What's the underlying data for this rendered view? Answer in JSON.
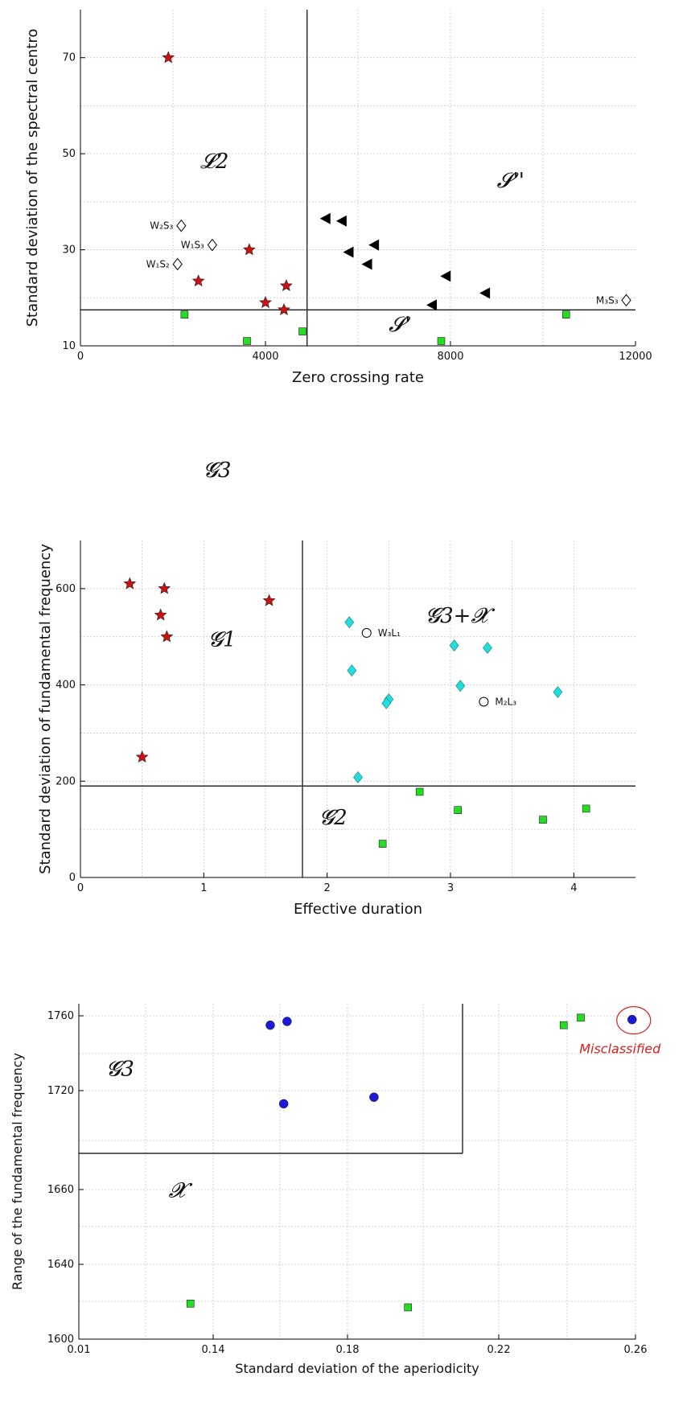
{
  "chart_data": [
    {
      "type": "scatter",
      "xlabel": "Zero crossing rate",
      "ylabel": "Standard deviation of the spectral centro",
      "xlim": [
        0,
        12000
      ],
      "ylim": [
        10,
        80
      ],
      "xticks": [
        0,
        4000,
        8000,
        12000
      ],
      "yticks": [
        10,
        30,
        50,
        70
      ],
      "grid": true,
      "dividers": {
        "vertical_x": 4900,
        "horizontal_y": 17.5
      },
      "region_labels": [
        {
          "text": "𝓛2",
          "x": 2900,
          "y": 47
        },
        {
          "text": "𝓢''",
          "x": 9300,
          "y": 43
        },
        {
          "text": "𝓢'",
          "x": 6900,
          "y": 13
        }
      ],
      "series": [
        {
          "marker": "star",
          "color": "#cc1111",
          "points": [
            [
              1900,
              70
            ],
            [
              3650,
              30
            ],
            [
              2550,
              23.5
            ],
            [
              4450,
              22.5
            ],
            [
              4000,
              19
            ],
            [
              4400,
              17.5
            ]
          ]
        },
        {
          "marker": "square",
          "color": "#22dd22",
          "points": [
            [
              2250,
              16.5
            ],
            [
              3600,
              11
            ],
            [
              4800,
              13
            ],
            [
              7800,
              11
            ],
            [
              10500,
              16.5
            ]
          ]
        },
        {
          "marker": "triangle-left",
          "color": "#000000",
          "points": [
            [
              5300,
              36.5
            ],
            [
              5650,
              36
            ],
            [
              5800,
              29.5
            ],
            [
              6350,
              31
            ],
            [
              6200,
              27
            ],
            [
              7900,
              24.5
            ],
            [
              8750,
              21
            ],
            [
              7600,
              18.5
            ]
          ]
        },
        {
          "marker": "diamond-open",
          "color": "#000000",
          "points": [
            [
              2180,
              35
            ],
            [
              2850,
              31
            ],
            [
              2100,
              27
            ],
            [
              11800,
              19.5
            ]
          ]
        }
      ],
      "annotations": [
        {
          "text": "W₂S₃",
          "x": 2180,
          "y": 35
        },
        {
          "text": "W₁S₃",
          "x": 2850,
          "y": 31
        },
        {
          "text": "W₁S₂",
          "x": 2100,
          "y": 27
        },
        {
          "text": "M₃S₃",
          "x": 11800,
          "y": 19.5
        }
      ]
    },
    {
      "type": "scatter",
      "xlabel": "Effective duration",
      "ylabel": "Standard deviation of fundamental frequency",
      "xlim": [
        0,
        4.5
      ],
      "ylim": [
        0,
        700
      ],
      "xticks": [
        0,
        1,
        2,
        3,
        4
      ],
      "yticks": [
        0,
        200,
        400,
        600
      ],
      "grid": true,
      "dividers": {
        "vertical_x": 1.8,
        "horizontal_y": 190
      },
      "region_labels": [
        {
          "text": "𝓖1",
          "x": 1.15,
          "y": 480
        },
        {
          "text": "𝓖3+𝓧",
          "x": 3.05,
          "y": 530
        },
        {
          "text": "𝓖2",
          "x": 2.05,
          "y": 110
        }
      ],
      "series": [
        {
          "marker": "star",
          "color": "#cc1111",
          "points": [
            [
              0.4,
              610
            ],
            [
              0.68,
              600
            ],
            [
              1.53,
              575
            ],
            [
              0.65,
              545
            ],
            [
              0.7,
              500
            ],
            [
              0.5,
              250
            ]
          ]
        },
        {
          "marker": "diamond",
          "color": "#22dddd",
          "points": [
            [
              2.18,
              530
            ],
            [
              3.03,
              482
            ],
            [
              3.3,
              477
            ],
            [
              2.2,
              430
            ],
            [
              3.08,
              398
            ],
            [
              3.87,
              385
            ],
            [
              2.5,
              370
            ],
            [
              2.48,
              362
            ],
            [
              2.25,
              208
            ]
          ]
        },
        {
          "marker": "circle-open",
          "color": "#000000",
          "points": [
            [
              2.32,
              508
            ],
            [
              3.27,
              365
            ]
          ]
        },
        {
          "marker": "square",
          "color": "#22dd22",
          "points": [
            [
              2.75,
              178
            ],
            [
              3.06,
              140
            ],
            [
              4.1,
              143
            ],
            [
              3.75,
              120
            ],
            [
              2.45,
              70
            ]
          ]
        }
      ],
      "annotations": [
        {
          "text": "W₃L₁",
          "x": 2.32,
          "y": 508
        },
        {
          "text": "M₂L₃",
          "x": 3.27,
          "y": 365
        }
      ]
    },
    {
      "type": "scatter",
      "xlabel": "Standard deviation of the aperiodicity",
      "ylabel": "Range of the fundamental frequency",
      "xticks": [
        "0.01",
        "0.14",
        "0.18",
        "0.22",
        "0.26"
      ],
      "yticks": [
        "1600",
        "1640",
        "1660",
        "1720",
        "1760"
      ],
      "grid": true,
      "dividers": {
        "vertical_x": "0.20 (approx.)",
        "horizontal_y": "1690 (approx.)"
      },
      "region_labels": [
        {
          "text": "𝓖3",
          "x": 0.05,
          "y": 1728
        },
        {
          "text": "𝓧",
          "x": 0.105,
          "y": 1658
        }
      ],
      "series": [
        {
          "marker": "circle",
          "color": "#1a1ad8",
          "points": [
            [
              0.157,
              1755
            ],
            [
              0.162,
              1757
            ],
            [
              0.161,
              1712
            ],
            [
              0.187,
              1716
            ],
            [
              0.259,
              1758
            ]
          ]
        },
        {
          "marker": "square",
          "color": "#22dd22",
          "points": [
            [
              0.239,
              1755
            ],
            [
              0.244,
              1759
            ],
            [
              0.118,
              1619
            ],
            [
              0.196,
              1617
            ]
          ]
        }
      ],
      "annotations": [
        {
          "text": "Misclassified",
          "x": 0.259,
          "y": 1758,
          "color": "#d42020"
        }
      ]
    }
  ],
  "captions": {
    "between_1_2": "𝓖3"
  }
}
